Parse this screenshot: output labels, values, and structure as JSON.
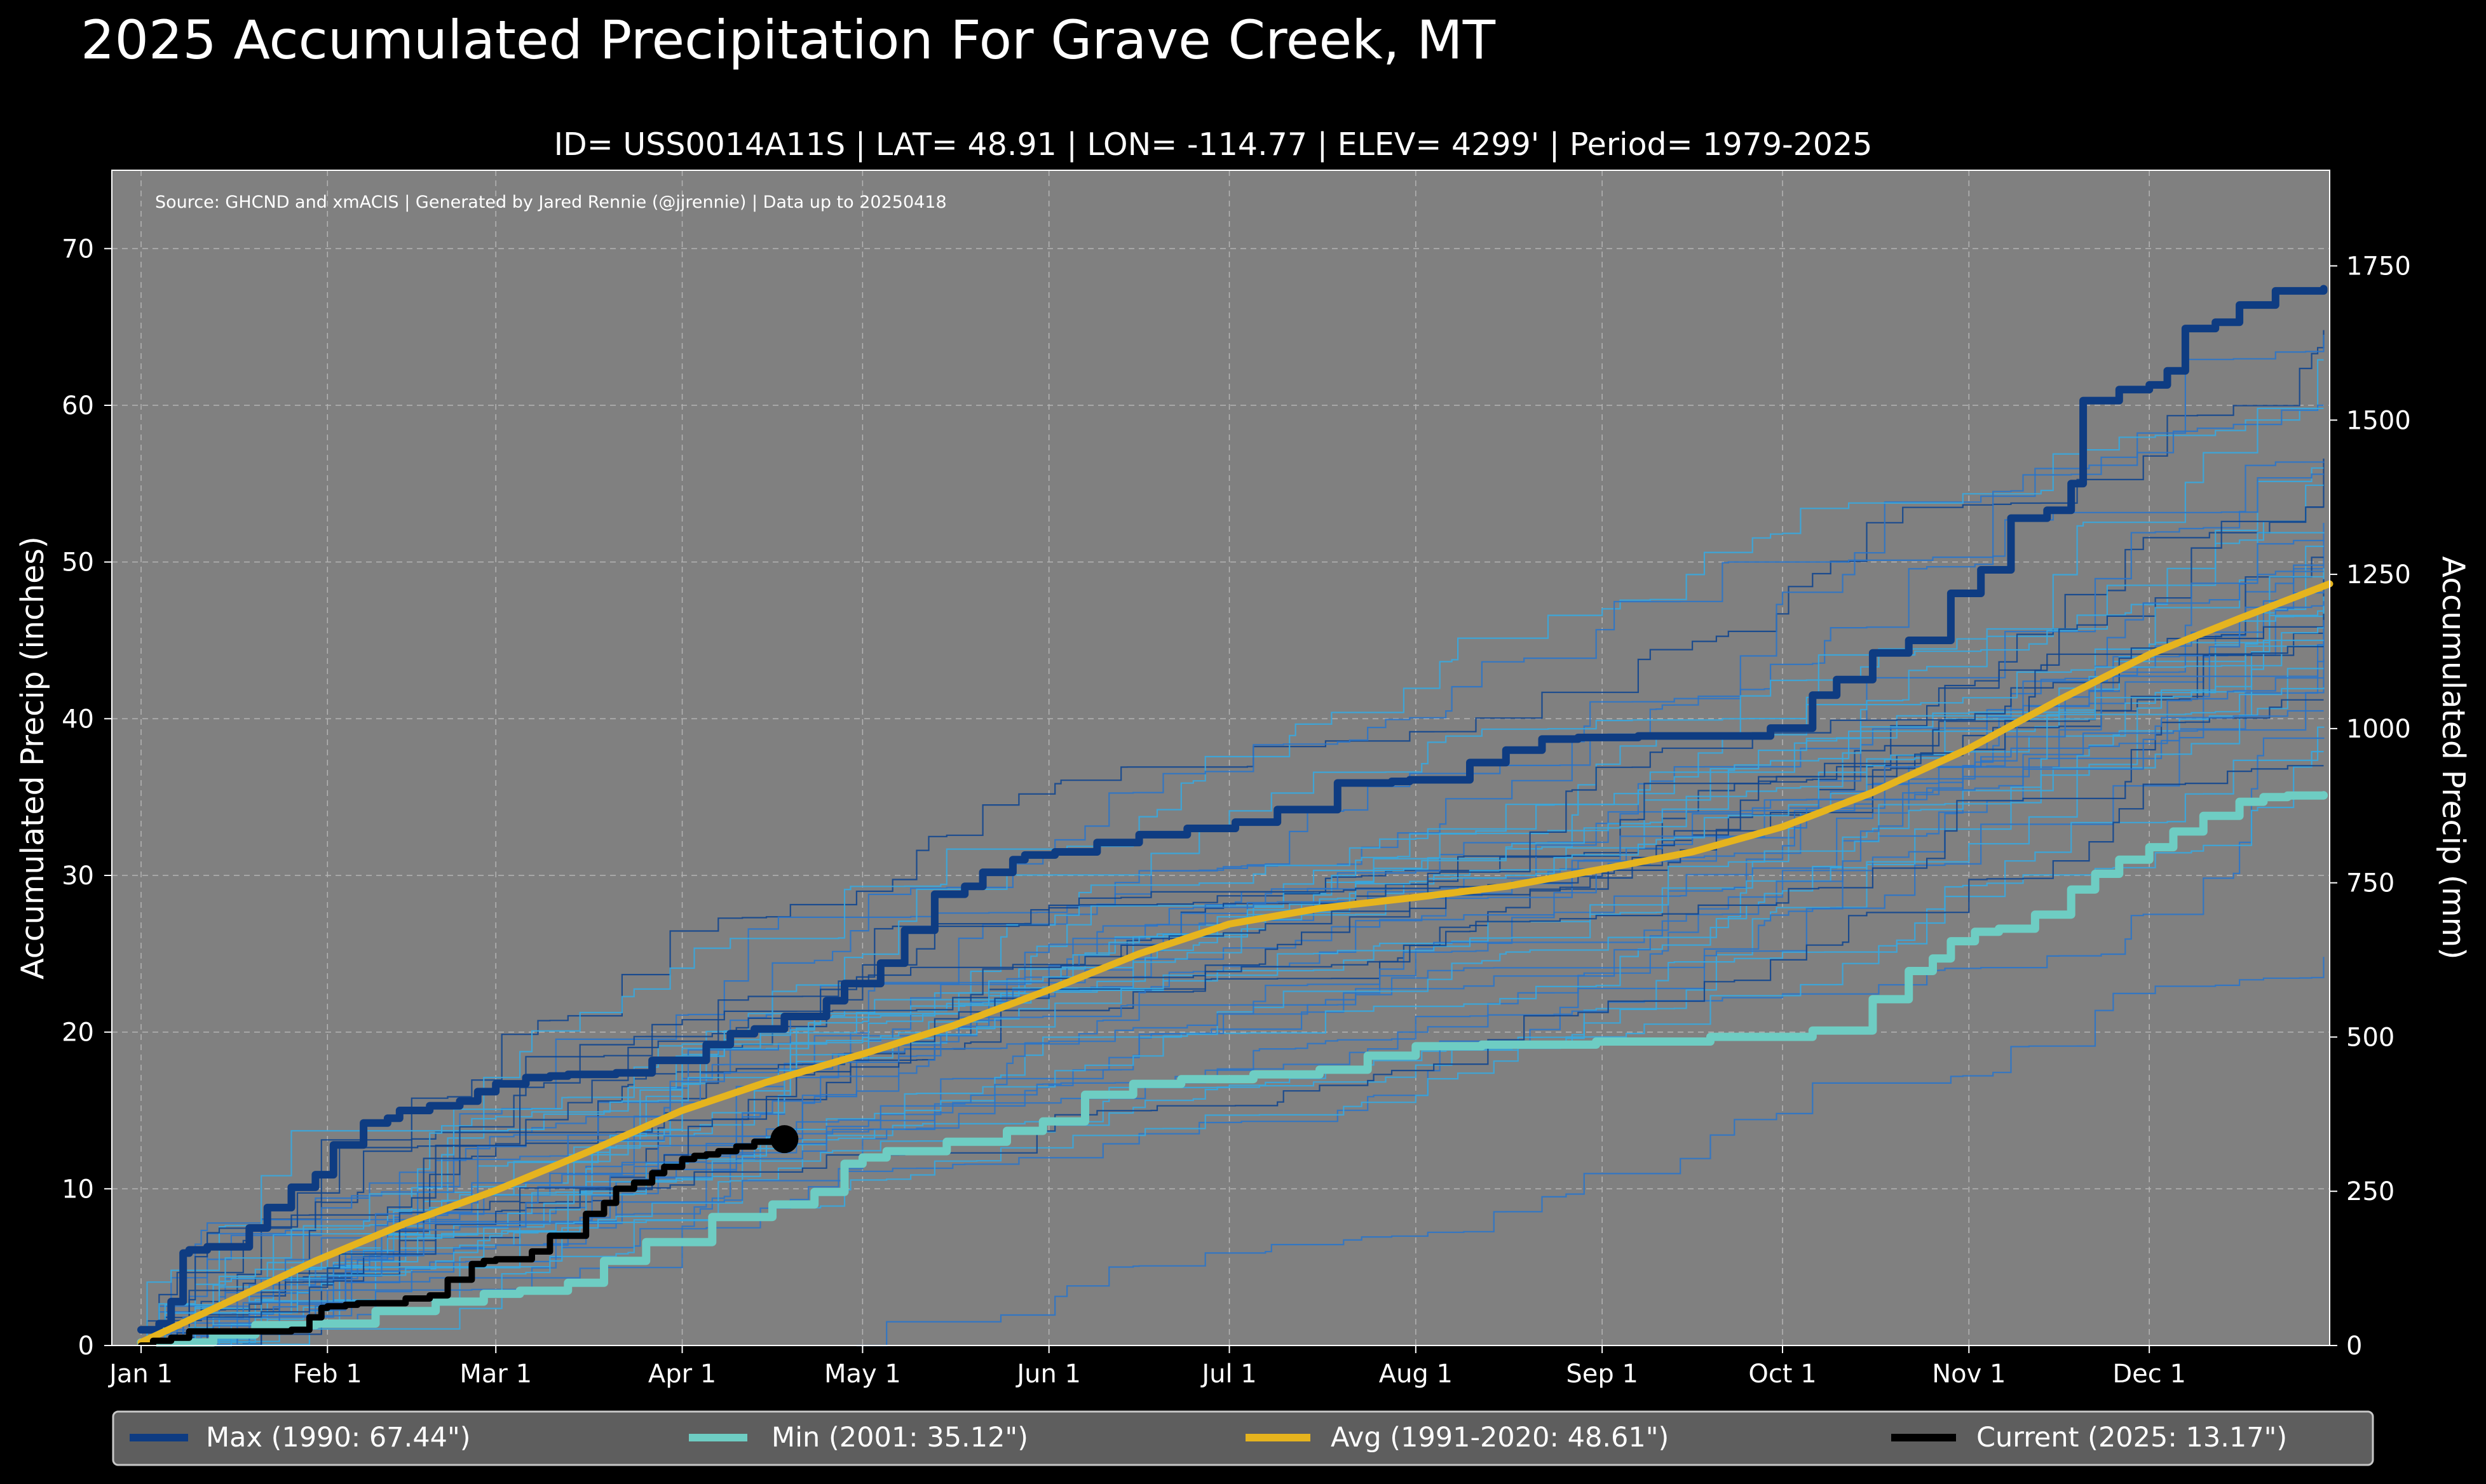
{
  "colors": {
    "background": "#000000",
    "plot_bg": "#808080",
    "grid": "#b4b4b4",
    "max": "#0e3c82",
    "min": "#6ecdc3",
    "avg": "#e6b41e",
    "current": "#000000",
    "legend_bg": "#5e5e5e",
    "spaghetti_dark": "#10458f",
    "spaghetti_mid": "#2a74c9",
    "spaghetti_light": "#36a8e0"
  },
  "chart_data": {
    "type": "line",
    "title": "2025 Accumulated Precipitation For Grave Creek, MT",
    "subtitle": "ID= USS0014A11S | LAT= 48.91 | LON= -114.77 | ELEV= 4299' | Period= 1979-2025",
    "source": "Source: GHCND and xmACIS | Generated by Jared Rennie (@jjrennie) | Data up to 20250418",
    "ylabel": "Accumulated Precip (inches)",
    "ylabel_right": "Accumulated Precip (mm)",
    "xlabel": "",
    "xlim": [
      1,
      365
    ],
    "ylim": [
      0,
      75
    ],
    "ylim_right_mm": [
      0,
      1905
    ],
    "grid": true,
    "legend_position": "bottom",
    "x_ticks": [
      {
        "day": 1,
        "label": "Jan 1"
      },
      {
        "day": 32,
        "label": "Feb 1"
      },
      {
        "day": 60,
        "label": "Mar 1"
      },
      {
        "day": 91,
        "label": "Apr 1"
      },
      {
        "day": 121,
        "label": "May 1"
      },
      {
        "day": 152,
        "label": "Jun 1"
      },
      {
        "day": 182,
        "label": "Jul 1"
      },
      {
        "day": 213,
        "label": "Aug 1"
      },
      {
        "day": 244,
        "label": "Sep 1"
      },
      {
        "day": 274,
        "label": "Oct 1"
      },
      {
        "day": 305,
        "label": "Nov 1"
      },
      {
        "day": 335,
        "label": "Dec 1"
      }
    ],
    "y_ticks": [
      "0",
      "10",
      "20",
      "30",
      "40",
      "50",
      "60",
      "70"
    ],
    "y_ticks_right": [
      "0",
      "250",
      "500",
      "750",
      "1000",
      "1250",
      "1500",
      "1750"
    ],
    "legend": [
      {
        "key": "max",
        "label": "Max (1990:  67.44\")"
      },
      {
        "key": "min",
        "label": "Min (2001:  35.12\")"
      },
      {
        "key": "avg",
        "label": "Avg (1991-2020:  48.61\")"
      },
      {
        "key": "current",
        "label": "Current (2025:  13.17\")"
      }
    ],
    "series": [
      {
        "name": "Max (1990)",
        "key": "max",
        "step": true,
        "x": [
          1,
          4,
          6,
          8,
          9,
          12,
          19,
          22,
          26,
          30,
          33,
          38,
          42,
          44,
          49,
          54,
          57,
          60,
          65,
          69,
          72,
          80,
          86,
          95,
          99,
          103,
          108,
          115,
          118,
          124,
          128,
          133,
          138,
          141,
          146,
          148,
          153,
          160,
          167,
          175,
          183,
          190,
          200,
          209,
          212,
          222,
          228,
          234,
          240,
          250,
          262,
          272,
          279,
          283,
          289,
          295,
          302,
          307,
          312,
          318,
          322,
          324,
          330,
          335,
          338,
          341,
          346,
          350,
          356,
          364
        ],
        "y": [
          1.0,
          1.4,
          2.8,
          5.9,
          6.1,
          6.3,
          7.5,
          8.8,
          10.1,
          10.9,
          12.8,
          14.2,
          14.5,
          15.0,
          15.3,
          15.6,
          16.2,
          16.7,
          17.1,
          17.2,
          17.3,
          17.4,
          18.2,
          19.2,
          19.9,
          20.2,
          21.0,
          22.0,
          23.1,
          24.4,
          26.5,
          28.8,
          29.3,
          30.2,
          31.0,
          31.3,
          31.5,
          32.1,
          32.6,
          33.0,
          33.4,
          34.2,
          35.9,
          36.0,
          36.1,
          37.2,
          38.0,
          38.7,
          38.8,
          38.9,
          38.9,
          39.4,
          41.5,
          42.5,
          44.2,
          45.0,
          48.0,
          49.5,
          52.8,
          53.3,
          55.0,
          60.3,
          61.0,
          61.3,
          62.2,
          64.9,
          65.3,
          66.4,
          67.3,
          67.44
        ]
      },
      {
        "name": "Min (2001)",
        "key": "min",
        "step": true,
        "x": [
          1,
          13,
          20,
          30,
          40,
          50,
          58,
          64,
          72,
          78,
          85,
          96,
          106,
          113,
          118,
          121,
          125,
          135,
          145,
          151,
          158,
          166,
          174,
          186,
          197,
          205,
          213,
          224,
          243,
          262,
          279,
          289,
          295,
          299,
          302,
          306,
          310,
          316,
          322,
          326,
          330,
          335,
          339,
          344,
          350,
          354,
          358,
          364
        ],
        "y": [
          0.2,
          0.7,
          1.3,
          1.4,
          2.2,
          2.8,
          3.3,
          3.5,
          4.0,
          5.4,
          6.6,
          8.2,
          9.0,
          9.8,
          11.6,
          12.0,
          12.4,
          13.0,
          13.7,
          14.3,
          16.0,
          16.7,
          17.0,
          17.3,
          17.6,
          18.5,
          19.1,
          19.2,
          19.4,
          19.7,
          20.1,
          22.1,
          23.9,
          24.7,
          25.8,
          26.4,
          26.6,
          27.5,
          29.1,
          30.1,
          31.0,
          31.8,
          32.8,
          33.8,
          34.7,
          35.0,
          35.1,
          35.12
        ]
      },
      {
        "name": "Avg (1991-2020)",
        "key": "avg",
        "step": false,
        "x": [
          1,
          15,
          30,
          45,
          60,
          75,
          91,
          105,
          121,
          136,
          152,
          167,
          182,
          197,
          213,
          228,
          244,
          259,
          274,
          289,
          305,
          320,
          335,
          350,
          365
        ],
        "y": [
          0.2,
          2.7,
          5.4,
          7.8,
          9.9,
          12.3,
          15.0,
          16.8,
          18.6,
          20.4,
          22.7,
          25.0,
          26.9,
          27.9,
          28.6,
          29.3,
          30.4,
          31.5,
          33.1,
          35.3,
          38.1,
          41.2,
          44.1,
          46.4,
          48.61
        ]
      },
      {
        "name": "Current (2025)",
        "key": "current",
        "step": true,
        "x": [
          1,
          3,
          6,
          9,
          26,
          29,
          31,
          32,
          35,
          37,
          45,
          49,
          52,
          56,
          58,
          60,
          66,
          69,
          75,
          78,
          80,
          83,
          86,
          88,
          91,
          93,
          95,
          97,
          100,
          103,
          106,
          108
        ],
        "y": [
          0.0,
          0.3,
          0.5,
          0.9,
          1.0,
          1.8,
          2.4,
          2.5,
          2.6,
          2.7,
          3.0,
          3.2,
          4.2,
          5.2,
          5.4,
          5.5,
          6.0,
          7.0,
          8.4,
          9.1,
          10.0,
          10.4,
          11.0,
          11.4,
          11.9,
          12.1,
          12.2,
          12.4,
          12.7,
          13.0,
          13.1,
          13.17
        ]
      }
    ],
    "spaghetti_final_totals_in": [
      64.8,
      64.5,
      62.9,
      60.0,
      59.8,
      56.6,
      56.4,
      56.0,
      55.6,
      54.9,
      53.5,
      52.5,
      51.9,
      51.4,
      51.0,
      50.3,
      49.8,
      49.6,
      49.4,
      49.1,
      48.9,
      48.2,
      47.8,
      47.5,
      47.2,
      46.7,
      46.3,
      45.8,
      45.4,
      45.0,
      44.6,
      43.8,
      43.2,
      42.6,
      42.0,
      41.2,
      40.5,
      39.5,
      38.8,
      37.9,
      37.0,
      24.8
    ]
  }
}
